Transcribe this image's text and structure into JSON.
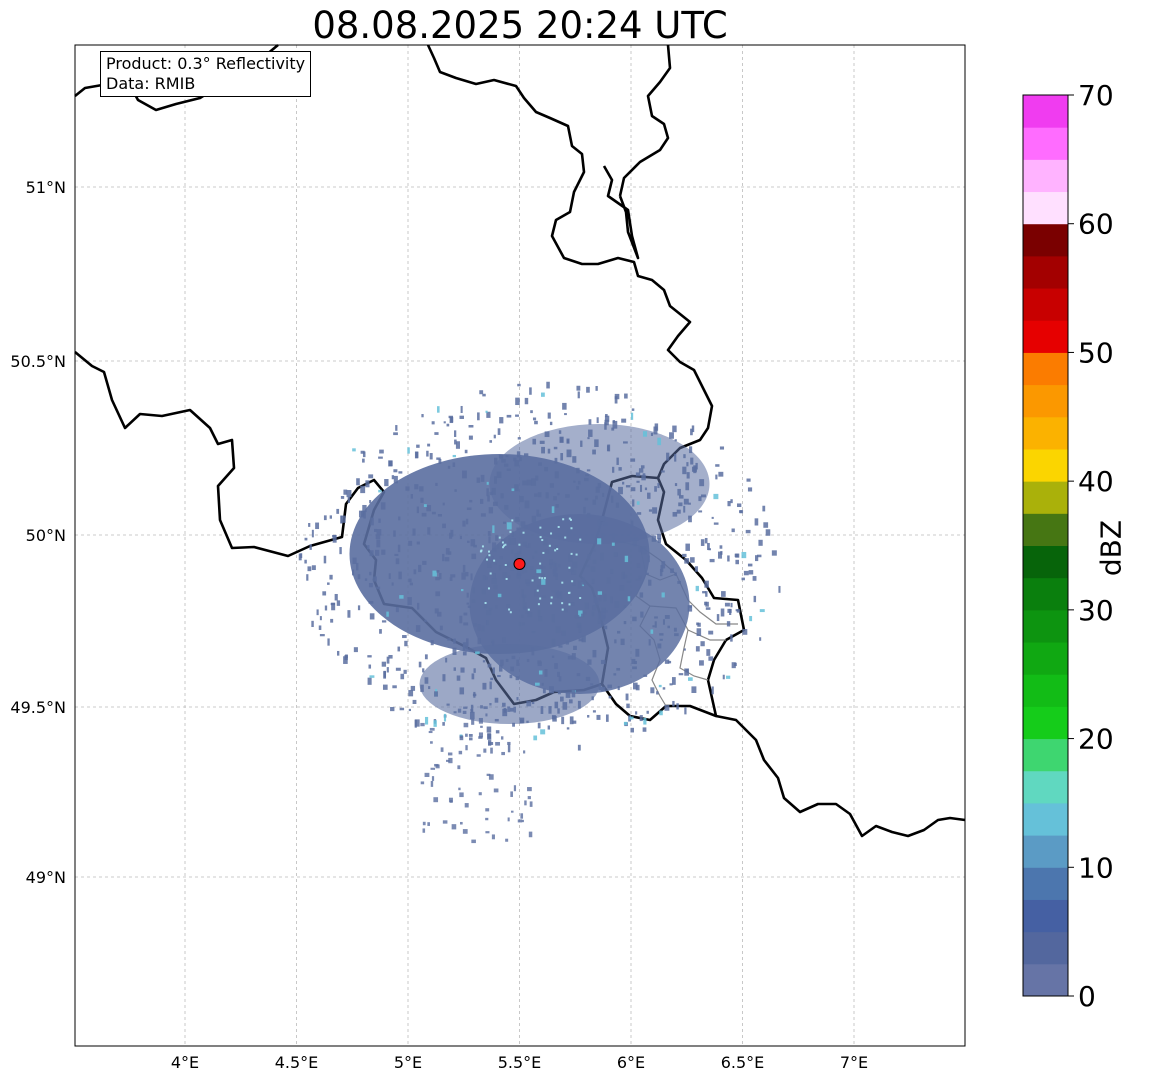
{
  "title": "08.08.2025 20:24 UTC",
  "info": {
    "product_line": "Product: 0.3° Reflectivity",
    "data_line": "Data: RMIB"
  },
  "map": {
    "lon_ticks": [
      4,
      4.5,
      5,
      5.5,
      6,
      6.5,
      7
    ],
    "lon_tick_labels": [
      "4°E",
      "4.5°E",
      "5°E",
      "5.5°E",
      "6°E",
      "6.5°E",
      "7°E"
    ],
    "lat_ticks": [
      51,
      50.5,
      50,
      49.5,
      49
    ],
    "lat_tick_labels": [
      "51°N",
      "50.5°N",
      "50°N",
      "49.5°N",
      "49°N"
    ],
    "extent": {
      "lon_min": 3.5,
      "lon_max": 7.5,
      "lat_min": 48.5,
      "lat_max": 51.4
    },
    "grid": true,
    "radar_site": {
      "lon": 5.5,
      "lat": 49.91,
      "color": "#ff1a1a"
    },
    "echo_color": "#5a6ea0"
  },
  "colorbar": {
    "label": "dBZ",
    "ticks": [
      0,
      10,
      20,
      30,
      40,
      50,
      60,
      70
    ],
    "tick_labels": [
      "0",
      "10",
      "20",
      "30",
      "40",
      "50",
      "60",
      "70"
    ],
    "colors": [
      "#6674a6",
      "#53679e",
      "#4560a3",
      "#4c76ae",
      "#5b9bc5",
      "#65c1d9",
      "#60d8c0",
      "#3ed670",
      "#15cc1a",
      "#12bc16",
      "#10a812",
      "#0d9410",
      "#0a7f0d",
      "#07640a",
      "#467613",
      "#aab10a",
      "#fbd500",
      "#fbb200",
      "#fb9800",
      "#fb7c00",
      "#e60000",
      "#c80000",
      "#a30000",
      "#7a0000",
      "#ffe0ff",
      "#ffb3ff",
      "#ff6cff",
      "#f03cf0"
    ]
  }
}
